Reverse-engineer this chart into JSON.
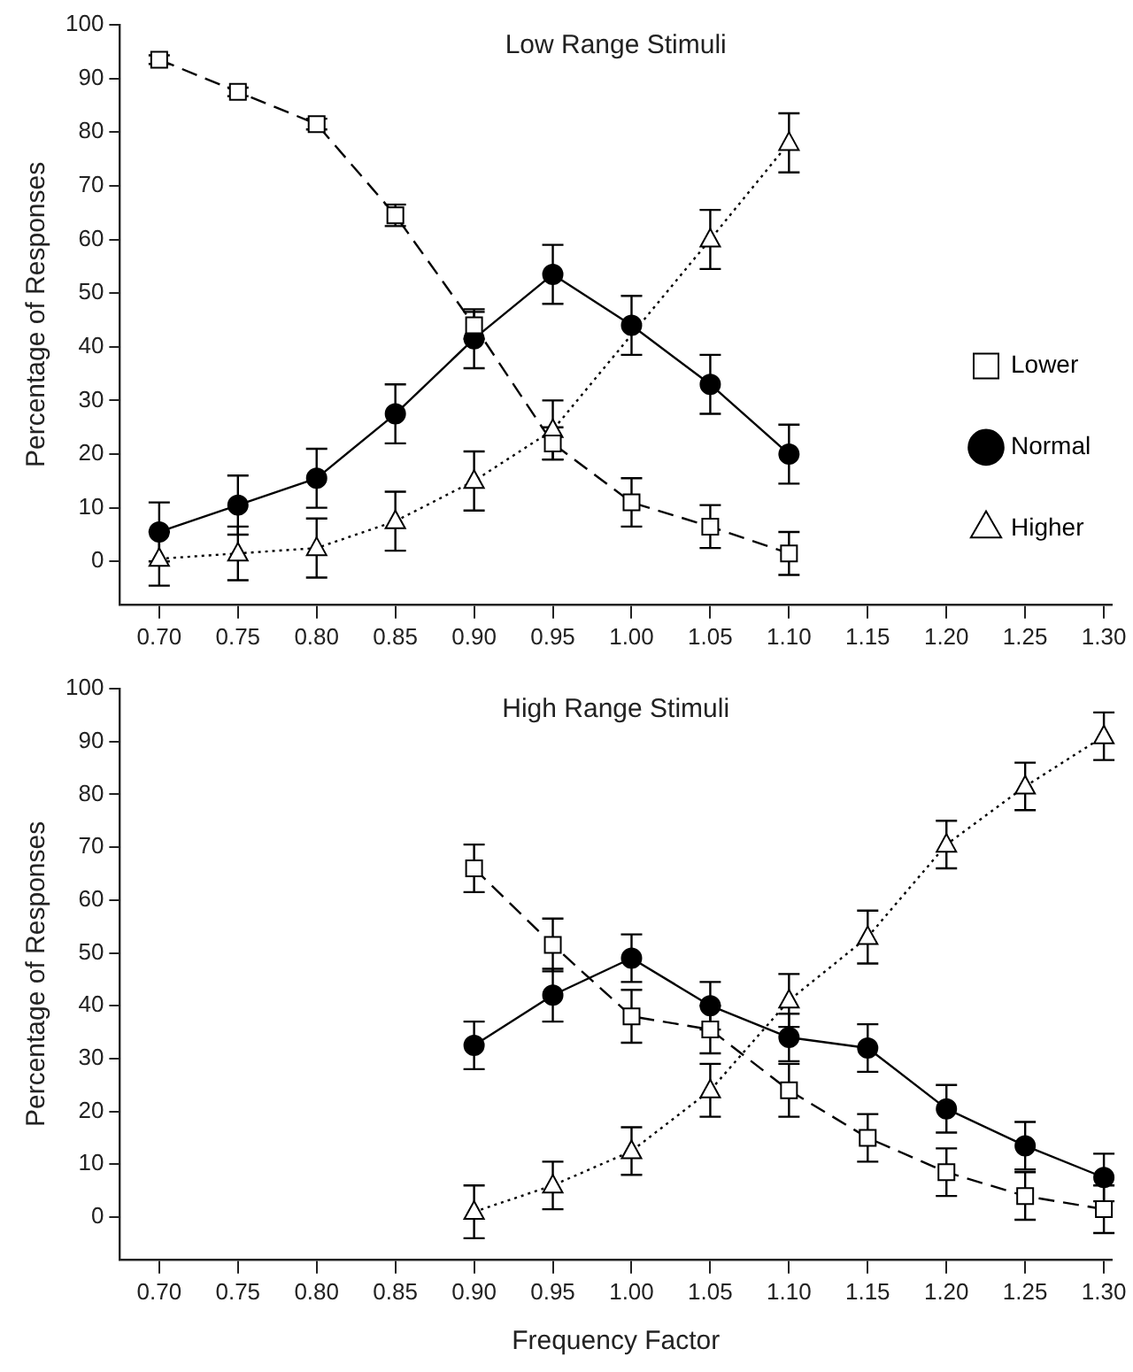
{
  "chart_data": [
    {
      "type": "line",
      "title": "Low Range Stimuli",
      "ylabel": "Percentage of Responses",
      "x": [
        0.7,
        0.75,
        0.8,
        0.85,
        0.9,
        0.95,
        1.0,
        1.05,
        1.1
      ],
      "xlim": [
        0.675,
        1.305
      ],
      "xticks": [
        {
          "value": 0.7,
          "label": "0.70"
        },
        {
          "value": 0.75,
          "label": "0.75"
        },
        {
          "value": 0.8,
          "label": "0.80"
        },
        {
          "value": 0.85,
          "label": "0.85"
        },
        {
          "value": 0.9,
          "label": "0.90"
        },
        {
          "value": 0.95,
          "label": "0.95"
        },
        {
          "value": 1.0,
          "label": "1.00"
        },
        {
          "value": 1.05,
          "label": "1.05"
        },
        {
          "value": 1.1,
          "label": "1.10"
        },
        {
          "value": 1.15,
          "label": "1.15"
        },
        {
          "value": 1.2,
          "label": "1.20"
        },
        {
          "value": 1.25,
          "label": "1.25"
        },
        {
          "value": 1.3,
          "label": "1.30"
        }
      ],
      "ylim": [
        -8,
        100
      ],
      "yticks": [
        0,
        10,
        20,
        30,
        40,
        50,
        60,
        70,
        80,
        90,
        100
      ],
      "grid": false,
      "legend": "right",
      "series": [
        {
          "name": "Lower",
          "color": "#000000",
          "marker": "square",
          "line_style": "dashed",
          "values": [
            93.5,
            87.5,
            81.5,
            64.5,
            44,
            22,
            11,
            6.5,
            1.5
          ],
          "errors": [
            0.8,
            0.8,
            1,
            2,
            2.5,
            3,
            4.5,
            4,
            4
          ]
        },
        {
          "name": "Normal",
          "color": "#000000",
          "marker": "circle",
          "line_style": "solid",
          "values": [
            5.5,
            10.5,
            15.5,
            27.5,
            41.5,
            53.5,
            44,
            33,
            20
          ],
          "errors": [
            5.5,
            5.5,
            5.5,
            5.5,
            5.5,
            5.5,
            5.5,
            5.5,
            5.5
          ]
        },
        {
          "name": "Higher",
          "color": "#000000",
          "marker": "triangle",
          "line_style": "dotted",
          "values": [
            0.5,
            1.5,
            2.5,
            7.5,
            15,
            24.5,
            null,
            60,
            78
          ],
          "errors": [
            5,
            5,
            5.5,
            5.5,
            5.5,
            5.5,
            null,
            5.5,
            5.5
          ]
        }
      ]
    },
    {
      "type": "line",
      "title": "High Range Stimuli",
      "xlabel": "Frequency Factor",
      "ylabel": "Percentage of Responses",
      "x": [
        0.9,
        0.95,
        1.0,
        1.05,
        1.1,
        1.15,
        1.2,
        1.25,
        1.3
      ],
      "xlim": [
        0.675,
        1.305
      ],
      "xticks": [
        {
          "value": 0.7,
          "label": "0.70"
        },
        {
          "value": 0.75,
          "label": "0.75"
        },
        {
          "value": 0.8,
          "label": "0.80"
        },
        {
          "value": 0.85,
          "label": "0.85"
        },
        {
          "value": 0.9,
          "label": "0.90"
        },
        {
          "value": 0.95,
          "label": "0.95"
        },
        {
          "value": 1.0,
          "label": "1.00"
        },
        {
          "value": 1.05,
          "label": "1.05"
        },
        {
          "value": 1.1,
          "label": "1.10"
        },
        {
          "value": 1.15,
          "label": "1.15"
        },
        {
          "value": 1.2,
          "label": "1.20"
        },
        {
          "value": 1.25,
          "label": "1.25"
        },
        {
          "value": 1.3,
          "label": "1.30"
        }
      ],
      "ylim": [
        -8,
        100
      ],
      "yticks": [
        0,
        10,
        20,
        30,
        40,
        50,
        60,
        70,
        80,
        90,
        100
      ],
      "grid": false,
      "series": [
        {
          "color": "#000000",
          "marker": "square",
          "line_style": "dashed",
          "values": [
            66,
            51.5,
            38,
            35.5,
            24,
            15,
            8.5,
            4,
            1.5
          ],
          "errors": [
            4.5,
            5,
            5,
            4.5,
            5,
            4.5,
            4.5,
            4.5,
            4.5
          ]
        },
        {
          "color": "#000000",
          "marker": "circle",
          "line_style": "solid",
          "values": [
            32.5,
            42,
            49,
            40,
            34,
            32,
            20.5,
            13.5,
            7.5
          ],
          "errors": [
            4.5,
            5,
            4.5,
            4.5,
            4.5,
            4.5,
            4.5,
            4.5,
            4.5
          ]
        },
        {
          "color": "#000000",
          "marker": "triangle",
          "line_style": "dotted",
          "values": [
            1,
            6,
            12.5,
            24,
            41,
            53,
            70.5,
            81.5,
            91
          ],
          "errors": [
            5,
            4.5,
            4.5,
            5,
            5,
            5,
            4.5,
            4.5,
            4.5
          ]
        }
      ]
    }
  ]
}
